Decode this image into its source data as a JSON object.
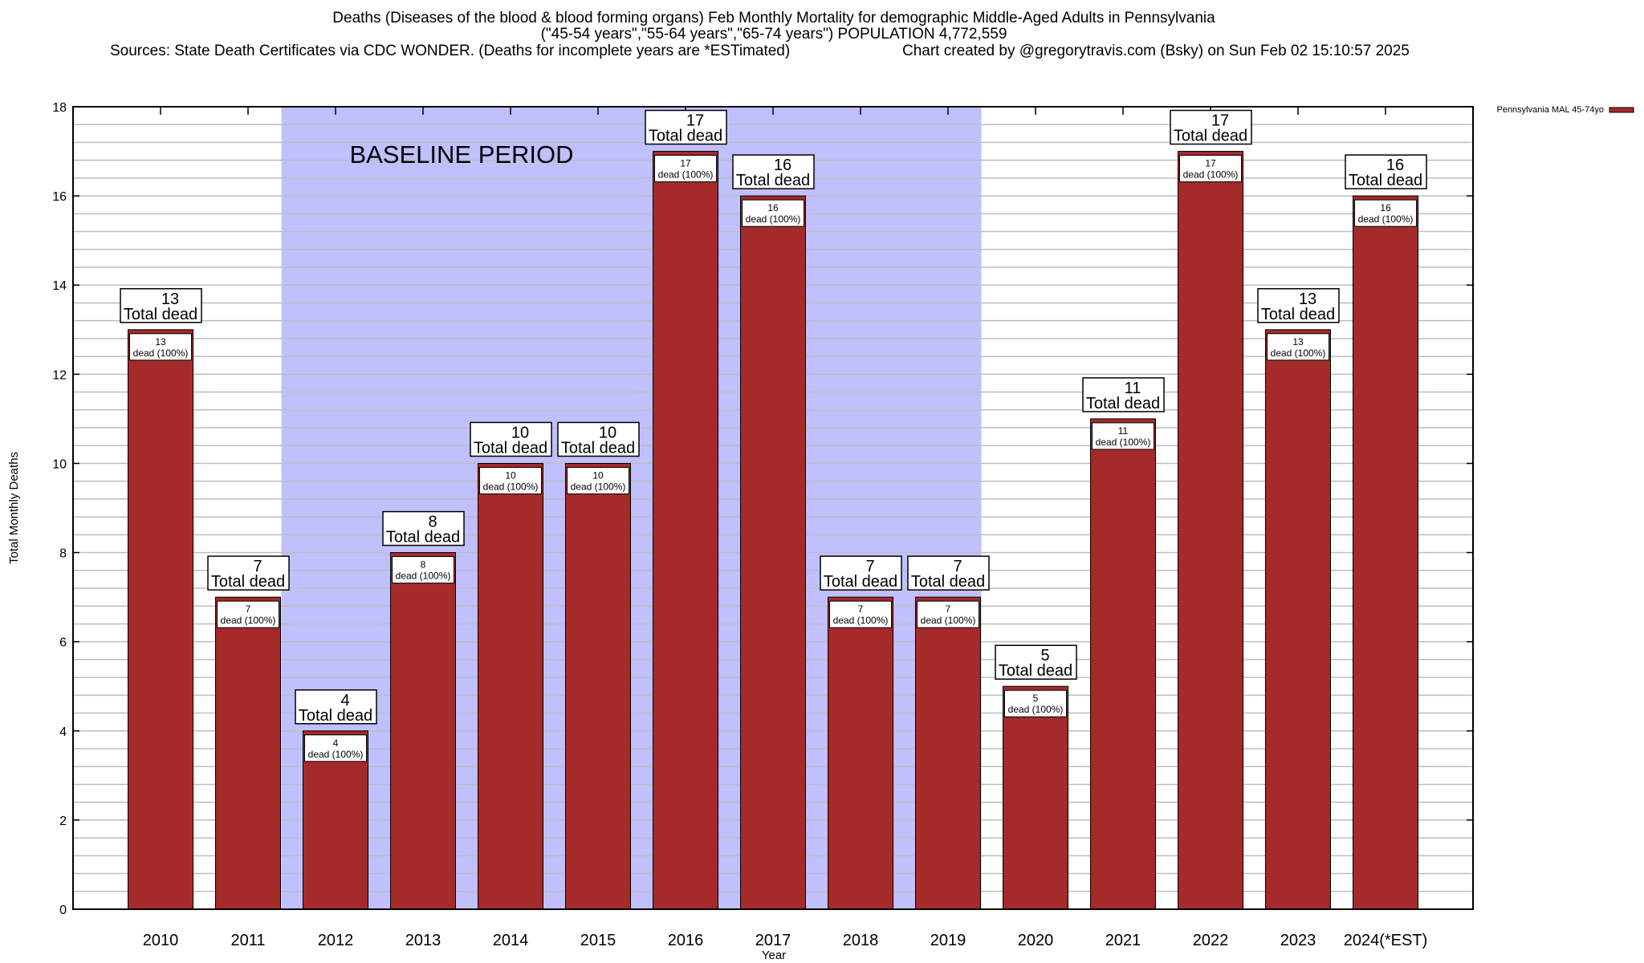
{
  "chart_data": {
    "type": "bar",
    "title_lines": [
      "Deaths (Diseases of the blood & blood forming organs) Feb Monthly Mortality for demographic Middle-Aged Adults in Pennsylvania",
      "(\"45-54 years\",\"55-64 years\",\"65-74 years\") POPULATION 4,772,559"
    ],
    "sources": "Sources: State Death Certificates via CDC WONDER. (Deaths for incomplete years are *ESTimated)",
    "credit": "Chart created by @gregorytravis.com (Bsky) on Sun Feb 02 15:10:57 2025",
    "xlabel": "Year",
    "ylabel": "Total Monthly Deaths",
    "ylim": [
      0,
      18
    ],
    "yticks": [
      0,
      2,
      4,
      6,
      8,
      10,
      12,
      14,
      16,
      18
    ],
    "minor_grid_step": 0.4,
    "grid": true,
    "categories": [
      "2010",
      "2011",
      "2012",
      "2013",
      "2014",
      "2015",
      "2016",
      "2017",
      "2018",
      "2019",
      "2020",
      "2021",
      "2022",
      "2023",
      "2024(*EST)"
    ],
    "series": [
      {
        "name": "Pennsylvania MAL 45-74yo",
        "color": "#a52a2a",
        "values": [
          13,
          7,
          4,
          8,
          10,
          10,
          17,
          16,
          7,
          7,
          5,
          11,
          17,
          13,
          16
        ]
      }
    ],
    "total_label_suffix": "Total dead",
    "bar_label_suffix": "dead (100%)",
    "legend_position": "top-right",
    "annotation": {
      "text": "BASELINE PERIOD",
      "from": "2012",
      "to": "2019",
      "color": "#c0c0ff"
    }
  }
}
